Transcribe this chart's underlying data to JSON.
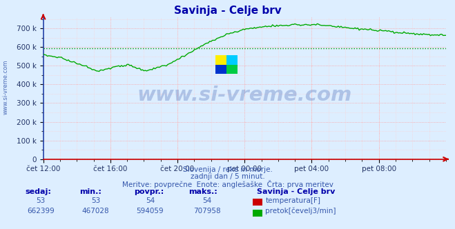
{
  "title": "Savinja - Celje brv",
  "bg_color": "#ddeeff",
  "plot_bg_color": "#ddeeff",
  "title_color": "#0000aa",
  "subtitle_color": "#3355aa",
  "tick_color": "#223366",
  "watermark_text": "www.si-vreme.com",
  "watermark_color": "#3355aa",
  "watermark_alpha": 0.28,
  "side_text": "www.si-vreme.com",
  "side_color": "#3355aa",
  "grid_major_color": "#ff9999",
  "grid_minor_color": "#ffcccc",
  "x_tick_labels": [
    "čet 12:00",
    "čet 16:00",
    "čet 20:00",
    "pet 00:00",
    "pet 04:00",
    "pet 08:00"
  ],
  "x_tick_positions": [
    0.0,
    0.1667,
    0.3333,
    0.5,
    0.6667,
    0.8333
  ],
  "y_tick_positions": [
    0,
    100000,
    200000,
    300000,
    400000,
    500000,
    600000,
    700000
  ],
  "y_tick_labels": [
    "0",
    "100 k",
    "200 k",
    "300 k",
    "400 k",
    "500 k",
    "600 k",
    "700 k"
  ],
  "ylim": [
    0,
    760000
  ],
  "flow_color": "#00aa00",
  "temp_color": "#cc0000",
  "avg_color": "#009900",
  "flow_avg": 594059,
  "subtitle1": "Slovenija / reke in morje.",
  "subtitle2": "zadnji dan / 5 minut.",
  "subtitle3": "Meritve: povprečne  Enote: anglešaške  Črta: prva meritev",
  "legend_title": "Savinja - Celje brv",
  "legend_temp_label": "temperatura[F]",
  "legend_flow_label": "pretok[čevelj3/min]",
  "table_headers": [
    "sedaj:",
    "min.:",
    "povpr.:",
    "maks.:"
  ],
  "temp_stats": [
    "53",
    "53",
    "54",
    "54"
  ],
  "flow_stats": [
    "662399",
    "467028",
    "594059",
    "707958"
  ],
  "logo_yellow": "#ffee00",
  "logo_cyan": "#00ccff",
  "logo_blue": "#0033cc",
  "logo_green": "#00cc44"
}
